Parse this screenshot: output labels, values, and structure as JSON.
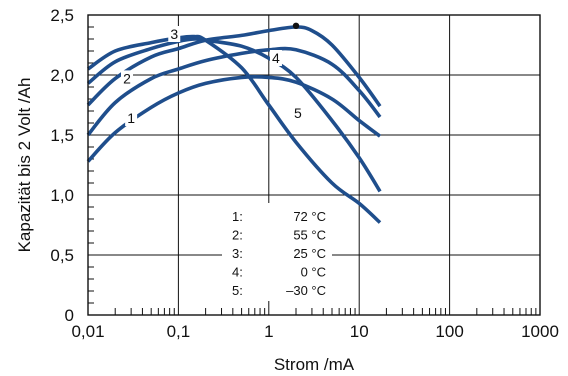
{
  "chart_data": {
    "type": "line",
    "title": "",
    "xlabel": "Strom /mA",
    "ylabel": "Kapazität bis 2 Volt /Ah",
    "x_scale": "log",
    "xlim": [
      0.01,
      1000
    ],
    "ylim": [
      0,
      2.5
    ],
    "grid": true,
    "x_ticks": [
      0.01,
      0.1,
      1,
      10,
      100,
      1000
    ],
    "x_tick_labels": [
      "0,01",
      "0,1",
      "1",
      "10",
      "100",
      "1000"
    ],
    "y_ticks": [
      0,
      0.5,
      1.0,
      1.5,
      2.0,
      2.5
    ],
    "y_tick_labels": [
      "0",
      "0,5",
      "1,0",
      "1,5",
      "2,0",
      "2,5"
    ],
    "line_color": "#1f4e8c",
    "series": [
      {
        "name": "1",
        "x": [
          0.01,
          0.02,
          0.05,
          0.1,
          0.2,
          0.5,
          1,
          2,
          5,
          10,
          17
        ],
        "values": [
          1.28,
          1.52,
          1.73,
          1.85,
          1.93,
          1.98,
          1.98,
          1.94,
          1.8,
          1.62,
          1.49
        ]
      },
      {
        "name": "2",
        "x": [
          0.01,
          0.02,
          0.05,
          0.1,
          0.2,
          0.5,
          1,
          2,
          5,
          10,
          17
        ],
        "values": [
          1.5,
          1.77,
          1.97,
          2.05,
          2.12,
          2.18,
          2.21,
          2.21,
          2.09,
          1.87,
          1.65
        ]
      },
      {
        "name": "3",
        "x": [
          0.01,
          0.02,
          0.05,
          0.1,
          0.2,
          0.5,
          1,
          2,
          3,
          5,
          10,
          17
        ],
        "values": [
          1.75,
          1.97,
          2.15,
          2.22,
          2.29,
          2.33,
          2.37,
          2.4,
          2.37,
          2.25,
          1.98,
          1.74
        ]
      },
      {
        "name": "4",
        "x": [
          0.01,
          0.02,
          0.05,
          0.1,
          0.15,
          0.2,
          0.5,
          1,
          2,
          5,
          10,
          17
        ],
        "values": [
          1.93,
          2.11,
          2.22,
          2.28,
          2.3,
          2.29,
          2.24,
          2.14,
          1.98,
          1.62,
          1.31,
          1.03
        ]
      },
      {
        "name": "5",
        "x": [
          0.01,
          0.02,
          0.05,
          0.1,
          0.15,
          0.2,
          0.5,
          1,
          2,
          5,
          10,
          17
        ],
        "values": [
          2.05,
          2.2,
          2.27,
          2.31,
          2.32,
          2.29,
          2.06,
          1.75,
          1.44,
          1.1,
          0.93,
          0.77
        ]
      }
    ],
    "curve_labels": [
      {
        "text": "1",
        "x": 0.03,
        "y": 1.6
      },
      {
        "text": "2",
        "x": 0.027,
        "y": 1.93
      },
      {
        "text": "3",
        "x": 0.09,
        "y": 2.3
      },
      {
        "text": "4",
        "x": 1.2,
        "y": 2.1
      },
      {
        "text": "5",
        "x": 2.1,
        "y": 1.64
      }
    ],
    "marker": {
      "x": 2.0,
      "y": 2.41
    },
    "legend": {
      "placement": "bottom-center",
      "entries": [
        {
          "key": "1:",
          "value": "72 °C"
        },
        {
          "key": "2:",
          "value": "55 °C"
        },
        {
          "key": "3:",
          "value": "25 °C"
        },
        {
          "key": "4:",
          "value": "0 °C"
        },
        {
          "key": "5:",
          "value": "–30 °C"
        }
      ]
    }
  }
}
